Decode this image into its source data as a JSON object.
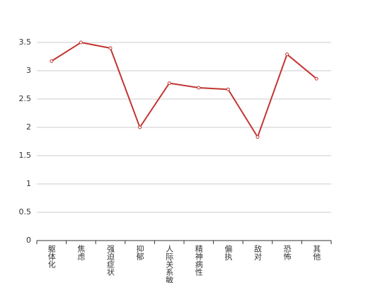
{
  "chart_data": {
    "type": "line",
    "categories": [
      "躯体化",
      "焦虑",
      "强迫症状",
      "抑郁",
      "人际关系敏感",
      "精神病性",
      "偏执",
      "敌对",
      "恐怖",
      "其他"
    ],
    "series": [
      {
        "name": "",
        "color": "#c23531",
        "values": [
          3.17,
          3.5,
          3.4,
          2.0,
          2.78,
          2.7,
          2.67,
          1.83,
          3.29,
          2.86
        ]
      }
    ],
    "ylim": [
      0,
      3.5
    ],
    "yticks": [
      0,
      0.5,
      1,
      1.5,
      2,
      2.5,
      3,
      3.5
    ],
    "grid": true
  }
}
